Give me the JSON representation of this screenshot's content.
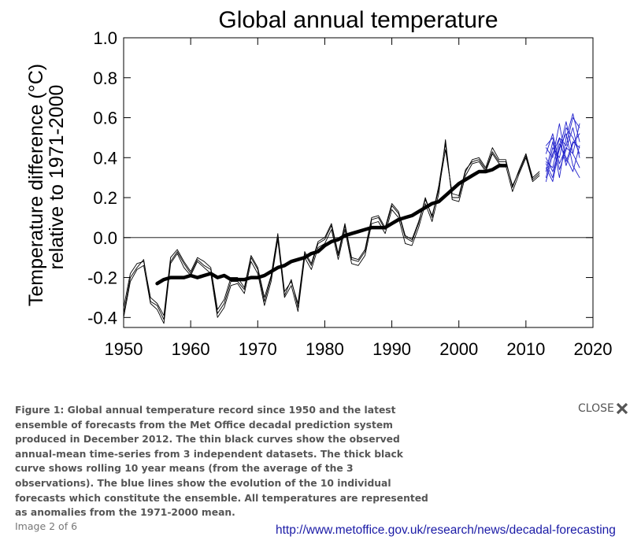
{
  "chart_data": {
    "type": "line",
    "title": "Global annual temperature",
    "ylabel_line1": "Temperature difference (°C)",
    "ylabel_line2": "relative to 1971-2000",
    "xlabel": "",
    "xlim": [
      1950,
      2020
    ],
    "ylim": [
      -0.45,
      1.0
    ],
    "xticks": [
      1950,
      1960,
      1970,
      1980,
      1990,
      2000,
      2010,
      2020
    ],
    "yticks": [
      -0.4,
      -0.2,
      0.0,
      0.2,
      0.4,
      0.6,
      0.8,
      1.0
    ],
    "ytick_labels": [
      "-0.4",
      "-0.2",
      "0.0",
      "0.2",
      "0.4",
      "0.6",
      "0.8",
      "1.0"
    ],
    "zero_line": true,
    "grid": false,
    "series": [
      {
        "style": "observed-thin",
        "color": "#000000",
        "x": [
          1950,
          1951,
          1952,
          1953,
          1954,
          1955,
          1956,
          1957,
          1958,
          1959,
          1960,
          1961,
          1962,
          1963,
          1964,
          1965,
          1966,
          1967,
          1968,
          1969,
          1970,
          1971,
          1972,
          1973,
          1974,
          1975,
          1976,
          1977,
          1978,
          1979,
          1980,
          1981,
          1982,
          1983,
          1984,
          1985,
          1986,
          1987,
          1988,
          1989,
          1990,
          1991,
          1992,
          1993,
          1994,
          1995,
          1996,
          1997,
          1998,
          1999,
          2000,
          2001,
          2002,
          2003,
          2004,
          2005,
          2006,
          2007,
          2008,
          2009,
          2010,
          2011,
          2012
        ],
        "y": [
          -0.38,
          -0.2,
          -0.15,
          -0.11,
          -0.32,
          -0.34,
          -0.41,
          -0.12,
          -0.07,
          -0.13,
          -0.18,
          -0.11,
          -0.14,
          -0.16,
          -0.38,
          -0.33,
          -0.22,
          -0.22,
          -0.26,
          -0.1,
          -0.16,
          -0.32,
          -0.2,
          0.0,
          -0.29,
          -0.21,
          -0.35,
          -0.08,
          -0.14,
          -0.03,
          -0.01,
          0.06,
          -0.09,
          0.06,
          -0.11,
          -0.12,
          -0.07,
          0.09,
          0.1,
          0.04,
          0.16,
          0.12,
          0.0,
          -0.02,
          0.07,
          0.2,
          0.1,
          0.26,
          0.47,
          0.2,
          0.2,
          0.33,
          0.39,
          0.4,
          0.35,
          0.45,
          0.39,
          0.39,
          0.25,
          0.34,
          0.42,
          0.3,
          0.33
        ]
      },
      {
        "style": "observed-thin",
        "color": "#000000",
        "x": [
          1950,
          1951,
          1952,
          1953,
          1954,
          1955,
          1956,
          1957,
          1958,
          1959,
          1960,
          1961,
          1962,
          1963,
          1964,
          1965,
          1966,
          1967,
          1968,
          1969,
          1970,
          1971,
          1972,
          1973,
          1974,
          1975,
          1976,
          1977,
          1978,
          1979,
          1980,
          1981,
          1982,
          1983,
          1984,
          1985,
          1986,
          1987,
          1988,
          1989,
          1990,
          1991,
          1992,
          1993,
          1994,
          1995,
          1996,
          1997,
          1998,
          1999,
          2000,
          2001,
          2002,
          2003,
          2004,
          2005,
          2006,
          2007,
          2008,
          2009,
          2010,
          2011,
          2012
        ],
        "y": [
          -0.35,
          -0.18,
          -0.13,
          -0.12,
          -0.3,
          -0.33,
          -0.39,
          -0.1,
          -0.06,
          -0.12,
          -0.17,
          -0.1,
          -0.12,
          -0.15,
          -0.36,
          -0.31,
          -0.2,
          -0.2,
          -0.25,
          -0.09,
          -0.15,
          -0.3,
          -0.19,
          0.02,
          -0.27,
          -0.22,
          -0.33,
          -0.07,
          -0.13,
          -0.02,
          0.0,
          0.07,
          -0.08,
          0.07,
          -0.1,
          -0.11,
          -0.06,
          0.1,
          0.11,
          0.05,
          0.17,
          0.13,
          0.01,
          -0.01,
          0.08,
          0.19,
          0.11,
          0.24,
          0.44,
          0.22,
          0.21,
          0.34,
          0.38,
          0.39,
          0.34,
          0.43,
          0.38,
          0.38,
          0.26,
          0.33,
          0.41,
          0.29,
          0.32
        ]
      },
      {
        "style": "observed-thin",
        "color": "#000000",
        "x": [
          1950,
          1951,
          1952,
          1953,
          1954,
          1955,
          1956,
          1957,
          1958,
          1959,
          1960,
          1961,
          1962,
          1963,
          1964,
          1965,
          1966,
          1967,
          1968,
          1969,
          1970,
          1971,
          1972,
          1973,
          1974,
          1975,
          1976,
          1977,
          1978,
          1979,
          1980,
          1981,
          1982,
          1983,
          1984,
          1985,
          1986,
          1987,
          1988,
          1989,
          1990,
          1991,
          1992,
          1993,
          1994,
          1995,
          1996,
          1997,
          1998,
          1999,
          2000,
          2001,
          2002,
          2003,
          2004,
          2005,
          2006,
          2007,
          2008,
          2009,
          2010,
          2011,
          2012
        ],
        "y": [
          -0.4,
          -0.22,
          -0.16,
          -0.14,
          -0.33,
          -0.36,
          -0.43,
          -0.13,
          -0.08,
          -0.15,
          -0.19,
          -0.12,
          -0.15,
          -0.18,
          -0.4,
          -0.35,
          -0.24,
          -0.23,
          -0.28,
          -0.12,
          -0.18,
          -0.34,
          -0.22,
          -0.01,
          -0.3,
          -0.24,
          -0.37,
          -0.1,
          -0.16,
          -0.05,
          -0.03,
          0.04,
          -0.11,
          0.04,
          -0.13,
          -0.14,
          -0.09,
          0.07,
          0.08,
          0.02,
          0.14,
          0.1,
          -0.03,
          -0.04,
          0.05,
          0.17,
          0.08,
          0.22,
          0.49,
          0.19,
          0.18,
          0.31,
          0.37,
          0.38,
          0.33,
          0.42,
          0.37,
          0.36,
          0.23,
          0.32,
          0.4,
          0.28,
          0.31
        ]
      },
      {
        "style": "rolling-mean-thick",
        "color": "#000000",
        "x": [
          1955,
          1956,
          1957,
          1958,
          1959,
          1960,
          1961,
          1962,
          1963,
          1964,
          1965,
          1966,
          1967,
          1968,
          1969,
          1970,
          1971,
          1972,
          1973,
          1974,
          1975,
          1976,
          1977,
          1978,
          1979,
          1980,
          1981,
          1982,
          1983,
          1984,
          1985,
          1986,
          1987,
          1988,
          1989,
          1990,
          1991,
          1992,
          1993,
          1994,
          1995,
          1996,
          1997,
          1998,
          1999,
          2000,
          2001,
          2002,
          2003,
          2004,
          2005,
          2006,
          2007
        ],
        "y": [
          -0.23,
          -0.21,
          -0.2,
          -0.2,
          -0.2,
          -0.19,
          -0.2,
          -0.19,
          -0.18,
          -0.2,
          -0.19,
          -0.21,
          -0.21,
          -0.21,
          -0.2,
          -0.2,
          -0.19,
          -0.17,
          -0.15,
          -0.14,
          -0.12,
          -0.11,
          -0.1,
          -0.08,
          -0.07,
          -0.04,
          -0.02,
          -0.01,
          0.01,
          0.02,
          0.03,
          0.04,
          0.05,
          0.05,
          0.05,
          0.07,
          0.09,
          0.1,
          0.11,
          0.13,
          0.15,
          0.17,
          0.18,
          0.21,
          0.24,
          0.27,
          0.29,
          0.31,
          0.33,
          0.33,
          0.34,
          0.36,
          0.36
        ]
      },
      {
        "style": "forecast",
        "color": "#2222cc",
        "x": [
          2013,
          2014,
          2015,
          2016,
          2017,
          2018
        ],
        "y": [
          0.3,
          0.45,
          0.4,
          0.55,
          0.5,
          0.42
        ]
      },
      {
        "style": "forecast",
        "color": "#2222cc",
        "x": [
          2013,
          2014,
          2015,
          2016,
          2017,
          2018
        ],
        "y": [
          0.38,
          0.35,
          0.5,
          0.46,
          0.6,
          0.55
        ]
      },
      {
        "style": "forecast",
        "color": "#2222cc",
        "x": [
          2013,
          2014,
          2015,
          2016,
          2017,
          2018
        ],
        "y": [
          0.42,
          0.52,
          0.37,
          0.45,
          0.42,
          0.57
        ]
      },
      {
        "style": "forecast",
        "color": "#2222cc",
        "x": [
          2013,
          2014,
          2015,
          2016,
          2017,
          2018
        ],
        "y": [
          0.35,
          0.28,
          0.45,
          0.52,
          0.36,
          0.3
        ]
      },
      {
        "style": "forecast",
        "color": "#2222cc",
        "x": [
          2013,
          2014,
          2015,
          2016,
          2017,
          2018
        ],
        "y": [
          0.45,
          0.4,
          0.57,
          0.38,
          0.48,
          0.45
        ]
      },
      {
        "style": "forecast",
        "color": "#2222cc",
        "x": [
          2013,
          2014,
          2015,
          2016,
          2017,
          2018
        ],
        "y": [
          0.33,
          0.48,
          0.3,
          0.5,
          0.62,
          0.48
        ]
      },
      {
        "style": "forecast",
        "color": "#2222cc",
        "x": [
          2013,
          2014,
          2015,
          2016,
          2017,
          2018
        ],
        "y": [
          0.4,
          0.33,
          0.44,
          0.58,
          0.42,
          0.35
        ]
      },
      {
        "style": "forecast",
        "color": "#2222cc",
        "x": [
          2013,
          2014,
          2015,
          2016,
          2017,
          2018
        ],
        "y": [
          0.28,
          0.42,
          0.5,
          0.36,
          0.47,
          0.52
        ]
      },
      {
        "style": "forecast",
        "color": "#2222cc",
        "x": [
          2013,
          2014,
          2015,
          2016,
          2017,
          2018
        ],
        "y": [
          0.46,
          0.5,
          0.34,
          0.44,
          0.55,
          0.4
        ]
      },
      {
        "style": "forecast",
        "color": "#2222cc",
        "x": [
          2013,
          2014,
          2015,
          2016,
          2017,
          2018
        ],
        "y": [
          0.37,
          0.3,
          0.47,
          0.4,
          0.33,
          0.46
        ]
      }
    ]
  },
  "caption": {
    "text": "Figure 1: Global annual temperature record since 1950 and the latest ensemble of forecasts from the Met Office decadal prediction system produced in December 2012. The thin black curves show the observed annual-mean time-series from 3 independent datasets. The thick black curve shows rolling 10 year means (from the average of the 3 observations). The blue lines show the evolution of the 10 individual forecasts which constitute the ensemble. All temperatures are represented as anomalies from the 1971-2000 mean."
  },
  "nav": {
    "counter": "Image 2 of 6"
  },
  "close": {
    "label": "CLOSE",
    "icon": "close-x-icon"
  },
  "source": {
    "url": "http://www.metoffice.gov.uk/research/news/decadal-forecasting"
  }
}
